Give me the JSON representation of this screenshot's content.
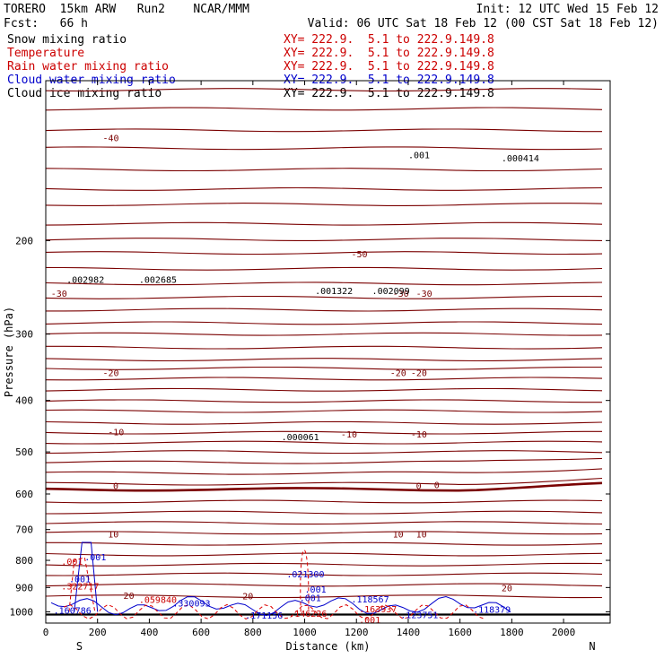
{
  "header": {
    "model": "TORERO  15km ARW   Run2    NCAR/MMM",
    "init": "Init: 12 UTC Wed 15 Feb 12",
    "fcst": "Fcst:   66 h",
    "valid": "Valid: 06 UTC Sat 18 Feb 12 (00 CST Sat 18 Feb 12)"
  },
  "fields": [
    {
      "name": "Snow mixing ratio",
      "xy": "XY= 222.9.  5.1 to 222.9.149.8",
      "color": "#000000"
    },
    {
      "name": "Temperature",
      "xy": "XY= 222.9.  5.1 to 222.9.149.8",
      "color": "#cc0000"
    },
    {
      "name": "Rain water mixing ratio",
      "xy": "XY= 222.9.  5.1 to 222.9.149.8",
      "color": "#cc0000"
    },
    {
      "name": "Cloud water mixing ratio",
      "xy": "XY= 222.9.  5.1 to 222.9.149.8",
      "color": "#0000cc"
    },
    {
      "name": "Cloud ice mixing ratio",
      "xy": "XY= 222.9.  5.1 to 222.9.149.8",
      "color": "#000000"
    }
  ],
  "chart_data": {
    "type": "cross-section contour",
    "ylabel": "Pressure (hPa)",
    "xlabel": "Distance (km)",
    "x_ticks": [
      0,
      200,
      400,
      600,
      800,
      1000,
      1200,
      1400,
      1600,
      1800,
      2000
    ],
    "y_ticks": [
      200,
      300,
      400,
      500,
      600,
      700,
      800,
      900,
      1000
    ],
    "xlim": [
      0,
      2180
    ],
    "ylim": [
      1050,
      100
    ],
    "y_scale": "log",
    "left_end": "S",
    "right_end": "N",
    "temperature_labels": [
      {
        "x": 20,
        "p": 255,
        "text": "-30"
      },
      {
        "x": 220,
        "p": 130,
        "text": "-40"
      },
      {
        "x": 1180,
        "p": 215,
        "text": "-50"
      },
      {
        "x": 1340,
        "p": 255,
        "text": "-30"
      },
      {
        "x": 1430,
        "p": 255,
        "text": "-30"
      },
      {
        "x": 220,
        "p": 360,
        "text": "-20"
      },
      {
        "x": 1330,
        "p": 360,
        "text": "-20"
      },
      {
        "x": 1410,
        "p": 360,
        "text": "-20"
      },
      {
        "x": 240,
        "p": 465,
        "text": "-10"
      },
      {
        "x": 1140,
        "p": 470,
        "text": "-10"
      },
      {
        "x": 1410,
        "p": 470,
        "text": "-10"
      },
      {
        "x": 260,
        "p": 587,
        "text": "0"
      },
      {
        "x": 1430,
        "p": 587,
        "text": "0"
      },
      {
        "x": 1500,
        "p": 585,
        "text": "0"
      },
      {
        "x": 240,
        "p": 725,
        "text": "10"
      },
      {
        "x": 1340,
        "p": 725,
        "text": "10"
      },
      {
        "x": 1430,
        "p": 725,
        "text": "10"
      },
      {
        "x": 300,
        "p": 945,
        "text": "20"
      },
      {
        "x": 760,
        "p": 948,
        "text": "20"
      },
      {
        "x": 1760,
        "p": 915,
        "text": "20"
      }
    ],
    "snow_labels": [
      {
        "x": 80,
        "p": 240,
        "text": ".002982"
      },
      {
        "x": 360,
        "p": 240,
        "text": ".002685"
      },
      {
        "x": 1040,
        "p": 252,
        "text": ".001322"
      },
      {
        "x": 1260,
        "p": 252,
        "text": ".002099"
      },
      {
        "x": 910,
        "p": 475,
        "text": ".000061"
      }
    ],
    "ice_labels": [
      {
        "x": 1400,
        "p": 140,
        "text": ".001"
      },
      {
        "x": 1760,
        "p": 142,
        "text": ".000414"
      }
    ],
    "rain_labels": [
      {
        "x": 60,
        "p": 815,
        "text": ".001"
      },
      {
        "x": 60,
        "p": 907,
        "text": ".322717"
      },
      {
        "x": 360,
        "p": 963,
        "text": ".059840"
      },
      {
        "x": 940,
        "p": 1022,
        "text": ".146226"
      },
      {
        "x": 1210,
        "p": 1003,
        "text": ".163937"
      },
      {
        "x": 1210,
        "p": 1050,
        "text": ".001"
      }
    ],
    "cloud_labels": [
      {
        "x": 150,
        "p": 800,
        "text": ".001"
      },
      {
        "x": 90,
        "p": 880,
        "text": ".001"
      },
      {
        "x": 30,
        "p": 1008,
        "text": ".160786"
      },
      {
        "x": 490,
        "p": 978,
        "text": ".330093"
      },
      {
        "x": 770,
        "p": 1030,
        "text": ".171156"
      },
      {
        "x": 930,
        "p": 862,
        "text": ".021300"
      },
      {
        "x": 1000,
        "p": 920,
        "text": ".001"
      },
      {
        "x": 980,
        "p": 955,
        "text": ".001"
      },
      {
        "x": 1180,
        "p": 960,
        "text": ".118567"
      },
      {
        "x": 1370,
        "p": 1028,
        "text": ".123751"
      },
      {
        "x": 1650,
        "p": 1005,
        "text": ".118379"
      }
    ]
  }
}
